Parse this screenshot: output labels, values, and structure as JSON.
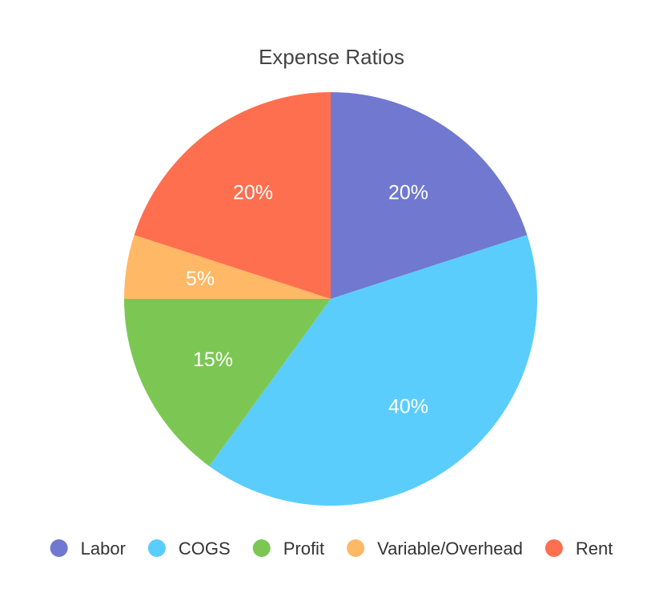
{
  "chart_data": {
    "type": "pie",
    "title": "Expense Ratios",
    "slices": [
      {
        "name": "Labor",
        "value": 20,
        "label": "20%",
        "color": "#7079CF"
      },
      {
        "name": "COGS",
        "value": 40,
        "label": "40%",
        "color": "#5ACDFD"
      },
      {
        "name": "Profit",
        "value": 15,
        "label": "15%",
        "color": "#7CC753"
      },
      {
        "name": "Variable/Overhead",
        "value": 5,
        "label": "5%",
        "color": "#FEB866"
      },
      {
        "name": "Rent",
        "value": 20,
        "label": "20%",
        "color": "#FE6F4F"
      }
    ],
    "start": "top",
    "direction": "clockwise",
    "legend_position": "bottom"
  }
}
